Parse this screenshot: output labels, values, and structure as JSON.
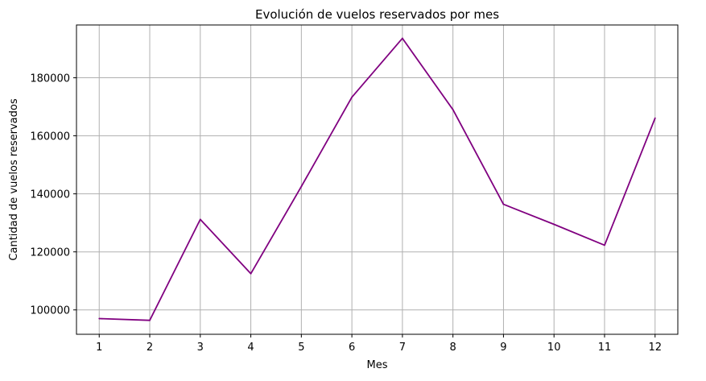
{
  "chart_data": {
    "type": "line",
    "title": "Evolución de vuelos reservados por mes",
    "xlabel": "Mes",
    "ylabel": "Cantidad de vuelos reservados",
    "x": [
      1,
      2,
      3,
      4,
      5,
      6,
      7,
      8,
      9,
      10,
      11,
      12
    ],
    "xticks": [
      "1",
      "2",
      "3",
      "4",
      "5",
      "6",
      "7",
      "8",
      "9",
      "10",
      "11",
      "12"
    ],
    "yticks": [
      100000,
      120000,
      140000,
      160000,
      180000
    ],
    "ytick_labels": [
      "100000",
      "120000",
      "140000",
      "160000",
      "180000"
    ],
    "xlim": [
      0.55,
      12.45
    ],
    "ylim": [
      91600,
      198200
    ],
    "grid": true,
    "series": [
      {
        "values": [
          97000,
          96400,
          131200,
          112500,
          142500,
          173300,
          193600,
          169000,
          136400,
          129500,
          122300,
          166100
        ],
        "color": "#800080"
      }
    ]
  }
}
